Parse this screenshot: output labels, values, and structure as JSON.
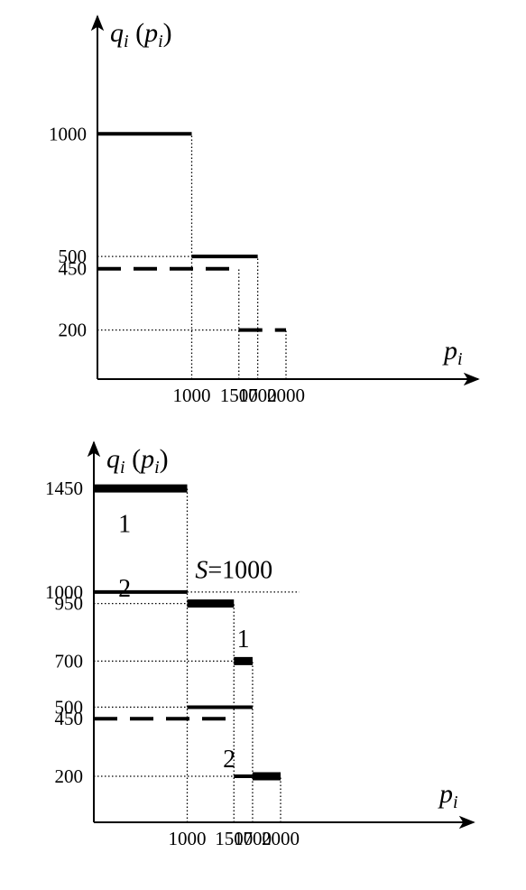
{
  "chart_data": [
    {
      "type": "step",
      "ylabel": {
        "main": "q",
        "sub": "i",
        "paren_main": "p",
        "paren_sub": "i"
      },
      "xlabel": {
        "main": "p",
        "sub": "i"
      },
      "xticks": [
        1000,
        1500,
        1700,
        2000
      ],
      "yticks": [
        1000,
        500,
        450,
        200
      ],
      "xlim": [
        0,
        2300
      ],
      "ylim": [
        0,
        1750
      ],
      "series": [
        {
          "style": "solid",
          "weight": "normal",
          "segments": [
            {
              "x0": 0,
              "x1": 1000,
              "y": 1000
            },
            {
              "x0": 1000,
              "x1": 1700,
              "y": 500
            }
          ]
        },
        {
          "style": "dashed",
          "weight": "normal",
          "segments": [
            {
              "x0": 0,
              "x1": 1500,
              "y": 450
            },
            {
              "x0": 1500,
              "x1": 2000,
              "y": 200
            }
          ]
        }
      ],
      "guides": [
        {
          "x0": 1000,
          "x1": 1000,
          "y0": 0,
          "y1": 1000
        },
        {
          "x0": 1500,
          "x1": 1500,
          "y0": 0,
          "y1": 450
        },
        {
          "x0": 1700,
          "x1": 1700,
          "y0": 0,
          "y1": 500
        },
        {
          "x0": 2000,
          "x1": 2000,
          "y0": 0,
          "y1": 200
        },
        {
          "x0": 0,
          "x1": 1000,
          "y0": 500,
          "y1": 500
        },
        {
          "x0": 0,
          "x1": 1500,
          "y0": 200,
          "y1": 200
        }
      ],
      "annotations": []
    },
    {
      "type": "step",
      "ylabel": {
        "main": "q",
        "sub": "i",
        "paren_main": "p",
        "paren_sub": "i"
      },
      "xlabel": {
        "main": "p",
        "sub": "i"
      },
      "xticks": [
        1000,
        1500,
        1700,
        2000
      ],
      "yticks": [
        1450,
        1000,
        950,
        700,
        500,
        450,
        200
      ],
      "xlim": [
        0,
        2300
      ],
      "ylim": [
        0,
        1750
      ],
      "series": [
        {
          "style": "solid",
          "weight": "normal",
          "segments": [
            {
              "x0": 0,
              "x1": 1000,
              "y": 1000
            },
            {
              "x0": 1000,
              "x1": 1700,
              "y": 500
            }
          ]
        },
        {
          "style": "dashed",
          "weight": "normal",
          "segments": [
            {
              "x0": 0,
              "x1": 1500,
              "y": 450
            },
            {
              "x0": 1500,
              "x1": 1700,
              "y": 200
            }
          ]
        },
        {
          "style": "solid",
          "weight": "bold",
          "segments": [
            {
              "x0": 0,
              "x1": 1000,
              "y": 1450
            },
            {
              "x0": 1000,
              "x1": 1500,
              "y": 950
            },
            {
              "x0": 1500,
              "x1": 1700,
              "y": 700
            },
            {
              "x0": 1700,
              "x1": 2000,
              "y": 200
            }
          ]
        }
      ],
      "guides": [
        {
          "x0": 1000,
          "x1": 1000,
          "y0": 0,
          "y1": 1450
        },
        {
          "x0": 1500,
          "x1": 1500,
          "y0": 0,
          "y1": 950
        },
        {
          "x0": 1700,
          "x1": 1700,
          "y0": 0,
          "y1": 700
        },
        {
          "x0": 2000,
          "x1": 2000,
          "y0": 0,
          "y1": 200
        },
        {
          "x0": 1000,
          "x1": 2200,
          "y0": 1000,
          "y1": 1000
        },
        {
          "x0": 0,
          "x1": 1000,
          "y0": 950,
          "y1": 950
        },
        {
          "x0": 0,
          "x1": 1500,
          "y0": 700,
          "y1": 700
        },
        {
          "x0": 0,
          "x1": 1000,
          "y0": 500,
          "y1": 500
        },
        {
          "x0": 0,
          "x1": 1500,
          "y0": 200,
          "y1": 200
        }
      ],
      "annotations": [
        {
          "text": "1",
          "x": 330,
          "y": 1260
        },
        {
          "text": "2",
          "x": 330,
          "y": 980
        },
        {
          "text": "1",
          "x": 1600,
          "y": 760
        },
        {
          "text": "2",
          "x": 1450,
          "y": 240
        },
        {
          "text_it": "S",
          "text": "=1000",
          "x": 1500,
          "y": 1060
        }
      ]
    }
  ]
}
